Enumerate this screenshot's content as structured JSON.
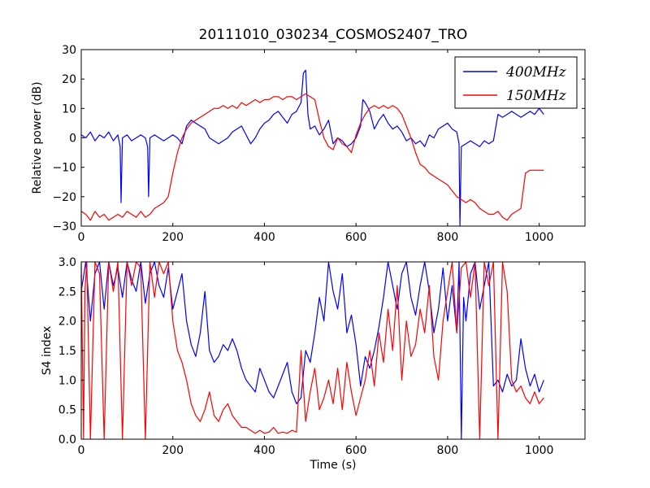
{
  "title": "20111010_030234_COSMOS2407_TRO",
  "colors": {
    "blue": "#0000ff",
    "red": "#ff0000"
  },
  "chart_data": [
    {
      "type": "line",
      "ylabel": "Relative power (dB)",
      "xlabel": "",
      "xlim": [
        0,
        1100
      ],
      "ylim": [
        -30,
        30
      ],
      "xticks": [
        0,
        200,
        400,
        600,
        800,
        1000
      ],
      "yticks": [
        -30,
        -20,
        -10,
        0,
        10,
        20,
        30
      ],
      "legend": "top-right",
      "series": [
        {
          "name": "400MHz",
          "color": "#0000ff",
          "x": [
            0,
            10,
            20,
            30,
            40,
            50,
            60,
            70,
            80,
            85,
            87,
            90,
            100,
            110,
            120,
            130,
            140,
            145,
            147,
            150,
            160,
            170,
            180,
            190,
            200,
            210,
            220,
            230,
            240,
            250,
            260,
            270,
            280,
            290,
            300,
            310,
            320,
            330,
            340,
            350,
            360,
            370,
            380,
            390,
            400,
            410,
            420,
            430,
            440,
            450,
            460,
            470,
            480,
            485,
            490,
            495,
            500,
            510,
            520,
            530,
            540,
            550,
            560,
            570,
            580,
            590,
            600,
            610,
            615,
            620,
            630,
            640,
            650,
            660,
            670,
            680,
            690,
            700,
            710,
            720,
            730,
            740,
            750,
            760,
            770,
            780,
            790,
            800,
            810,
            820,
            825,
            827,
            830,
            840,
            850,
            860,
            870,
            880,
            890,
            900,
            910,
            920,
            930,
            940,
            950,
            960,
            970,
            980,
            990,
            1000,
            1010
          ],
          "y": [
            1,
            0,
            2,
            -1,
            1,
            0,
            2,
            -1,
            1,
            -3,
            -22,
            0,
            1,
            -1,
            0,
            1,
            0,
            -3,
            -20,
            0,
            1,
            0,
            -1,
            0,
            1,
            0,
            -2,
            4,
            6,
            5,
            4,
            3,
            0,
            -1,
            -2,
            -1,
            0,
            2,
            3,
            4,
            1,
            -2,
            0,
            3,
            5,
            6,
            8,
            9,
            7,
            5,
            8,
            9,
            12,
            22,
            23,
            8,
            3,
            4,
            1,
            3,
            6,
            -2,
            0,
            -1,
            -3,
            -2,
            0,
            4,
            13,
            12,
            9,
            3,
            6,
            8,
            5,
            3,
            4,
            2,
            -1,
            0,
            -2,
            -1,
            -3,
            1,
            0,
            3,
            4,
            5,
            3,
            2,
            -2,
            -30,
            -3,
            -2,
            -1,
            -2,
            -3,
            -1,
            -2,
            -1,
            8,
            7,
            8,
            9,
            8,
            7,
            8,
            9,
            8,
            10,
            8
          ]
        },
        {
          "name": "150MHz",
          "color": "#ff0000",
          "x": [
            0,
            10,
            20,
            30,
            40,
            50,
            60,
            70,
            80,
            90,
            100,
            110,
            120,
            130,
            140,
            150,
            160,
            170,
            180,
            190,
            200,
            210,
            220,
            230,
            240,
            250,
            260,
            270,
            280,
            290,
            300,
            310,
            320,
            330,
            340,
            350,
            360,
            370,
            380,
            390,
            400,
            410,
            420,
            430,
            440,
            450,
            460,
            470,
            480,
            490,
            500,
            510,
            520,
            530,
            540,
            550,
            560,
            570,
            580,
            590,
            600,
            610,
            620,
            630,
            640,
            650,
            660,
            670,
            680,
            690,
            700,
            710,
            720,
            730,
            740,
            750,
            760,
            770,
            780,
            790,
            800,
            810,
            820,
            830,
            840,
            850,
            860,
            870,
            880,
            890,
            900,
            910,
            920,
            930,
            940,
            950,
            960,
            970,
            980,
            990,
            1000,
            1010
          ],
          "y": [
            -25,
            -26,
            -28,
            -25,
            -27,
            -26,
            -28,
            -27,
            -26,
            -27,
            -25,
            -26,
            -27,
            -25,
            -27,
            -26,
            -24,
            -23,
            -22,
            -20,
            -12,
            -5,
            0,
            3,
            5,
            6,
            7,
            8,
            9,
            10,
            10,
            11,
            10,
            11,
            10,
            12,
            11,
            12,
            13,
            12,
            13,
            13,
            14,
            14,
            13,
            14,
            14,
            13,
            14,
            15,
            14,
            13,
            6,
            0,
            -3,
            -4,
            0,
            -2,
            -3,
            -5,
            1,
            5,
            8,
            10,
            11,
            10,
            11,
            10,
            11,
            10,
            8,
            4,
            0,
            -5,
            -9,
            -10,
            -12,
            -13,
            -14,
            -15,
            -16,
            -18,
            -20,
            -21,
            -22,
            -21,
            -22,
            -24,
            -25,
            -26,
            -26,
            -25,
            -27,
            -28,
            -26,
            -25,
            -24,
            -12,
            -11,
            -11,
            -11,
            -11
          ]
        }
      ]
    },
    {
      "type": "line",
      "ylabel": "S4 index",
      "xlabel": "Time (s)",
      "xlim": [
        0,
        1100
      ],
      "ylim": [
        0,
        3
      ],
      "xticks": [
        0,
        200,
        400,
        600,
        800,
        1000
      ],
      "yticks": [
        0.0,
        0.5,
        1.0,
        1.5,
        2.0,
        2.5,
        3.0
      ],
      "series": [
        {
          "color": "#0000ff",
          "x": [
            0,
            10,
            20,
            30,
            40,
            50,
            60,
            70,
            80,
            90,
            100,
            110,
            120,
            130,
            140,
            150,
            160,
            170,
            180,
            190,
            200,
            210,
            220,
            230,
            240,
            250,
            260,
            270,
            280,
            290,
            300,
            310,
            320,
            330,
            340,
            350,
            360,
            370,
            380,
            390,
            400,
            410,
            420,
            430,
            440,
            450,
            460,
            470,
            480,
            490,
            500,
            510,
            520,
            530,
            540,
            550,
            560,
            570,
            580,
            590,
            600,
            610,
            620,
            630,
            640,
            650,
            660,
            670,
            680,
            690,
            700,
            710,
            720,
            730,
            740,
            750,
            760,
            770,
            780,
            790,
            800,
            810,
            820,
            825,
            830,
            835,
            840,
            850,
            860,
            870,
            880,
            890,
            900,
            910,
            920,
            930,
            940,
            950,
            960,
            970,
            980,
            990,
            1000,
            1010
          ],
          "y": [
            2.5,
            3,
            2,
            2.8,
            3,
            2.2,
            3,
            2.6,
            2.9,
            2.4,
            3,
            2.7,
            2.5,
            3,
            2.3,
            2.8,
            3,
            2.6,
            2.4,
            2.9,
            2.2,
            2.5,
            2.8,
            2,
            1.6,
            1.4,
            1.8,
            2.5,
            1.5,
            1.3,
            1.4,
            1.6,
            1.5,
            1.7,
            1.5,
            1.2,
            1.0,
            0.9,
            0.8,
            1.2,
            1.0,
            0.8,
            0.7,
            0.9,
            1.1,
            1.3,
            0.8,
            0.6,
            0.7,
            1.5,
            1.3,
            1.8,
            2.4,
            2.0,
            3,
            2.5,
            2.2,
            2.8,
            1.8,
            2.1,
            1.6,
            0.9,
            1.4,
            1.2,
            1.5,
            1.9,
            2.4,
            3,
            2.6,
            2.2,
            2.8,
            3,
            2.4,
            2.1,
            2.6,
            3,
            2.5,
            1.8,
            2.2,
            2.9,
            2.0,
            2.6,
            1.8,
            3,
            0,
            2.4,
            2.0,
            2.8,
            3,
            2.2,
            2.6,
            3,
            0.9,
            1.0,
            0.8,
            1.1,
            0.9,
            1.0,
            1.7,
            1.2,
            0.9,
            1.1,
            0.8,
            1.0
          ]
        },
        {
          "color": "#ff0000",
          "x": [
            0,
            5,
            8,
            12,
            20,
            30,
            40,
            50,
            60,
            70,
            80,
            90,
            100,
            110,
            120,
            130,
            140,
            150,
            160,
            170,
            180,
            190,
            200,
            210,
            220,
            230,
            240,
            250,
            260,
            270,
            280,
            290,
            300,
            310,
            320,
            330,
            340,
            350,
            360,
            370,
            380,
            390,
            400,
            410,
            420,
            430,
            440,
            450,
            460,
            470,
            480,
            490,
            500,
            510,
            520,
            530,
            540,
            550,
            560,
            570,
            580,
            590,
            600,
            610,
            620,
            630,
            640,
            650,
            660,
            670,
            680,
            690,
            700,
            710,
            720,
            730,
            740,
            750,
            760,
            770,
            780,
            790,
            800,
            810,
            820,
            830,
            840,
            850,
            860,
            870,
            880,
            890,
            900,
            910,
            920,
            930,
            940,
            950,
            960,
            970,
            980,
            990,
            1000,
            1010
          ],
          "y": [
            3,
            0,
            2.5,
            3,
            0,
            3,
            2.8,
            0,
            3,
            2.5,
            3,
            0,
            3,
            2.6,
            3,
            2.9,
            0,
            3,
            2.4,
            3,
            2.8,
            3,
            2.0,
            1.5,
            1.3,
            1.0,
            0.6,
            0.4,
            0.3,
            0.5,
            0.8,
            0.4,
            0.3,
            0.5,
            0.6,
            0.4,
            0.3,
            0.2,
            0.2,
            0.15,
            0.1,
            0.15,
            0.1,
            0.12,
            0.2,
            0.1,
            0.12,
            0.1,
            0.15,
            0.12,
            1.5,
            0.3,
            0.8,
            1.2,
            0.5,
            0.7,
            1.0,
            0.6,
            1.2,
            0.5,
            1.3,
            0.8,
            0.4,
            0.7,
            1.0,
            1.5,
            0.9,
            1.8,
            1.3,
            2.2,
            1.5,
            2.6,
            1.0,
            2.0,
            1.4,
            1.6,
            2.2,
            1.8,
            2.6,
            1.4,
            1.0,
            2.0,
            2.5,
            3,
            1.8,
            2.9,
            3,
            2.4,
            3,
            0,
            3,
            2.6,
            3,
            0,
            3,
            2.5,
            1.0,
            0.8,
            0.9,
            0.7,
            0.6,
            0.8,
            0.6,
            0.7
          ]
        }
      ]
    }
  ]
}
